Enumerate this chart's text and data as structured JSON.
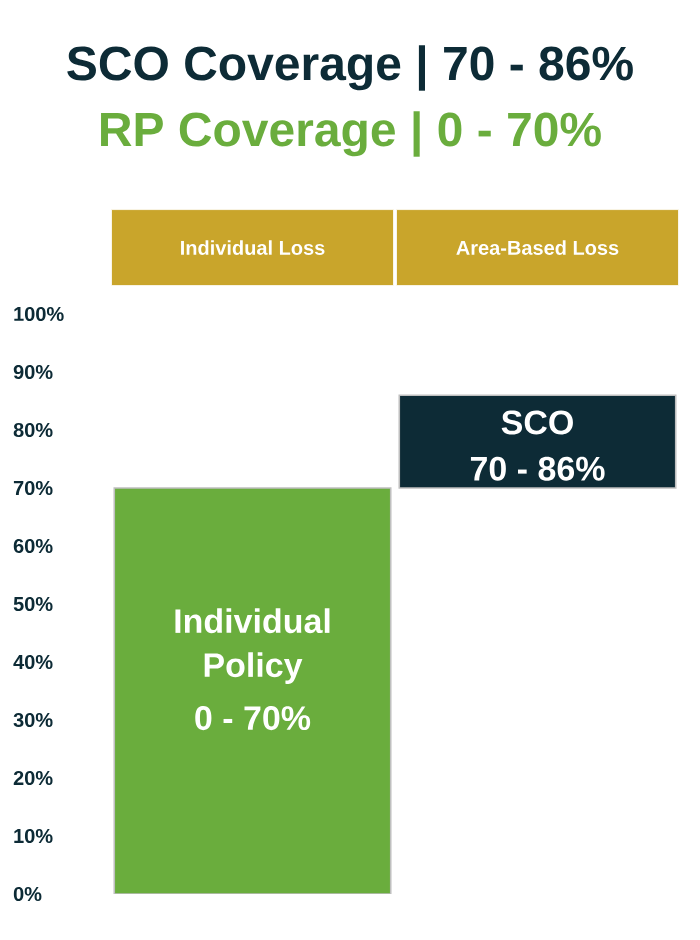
{
  "chart_data": {
    "type": "bar",
    "title": "SCO Coverage   | 70 - 86%",
    "subtitle": "RP Coverage     |   0 - 70%",
    "categories": [
      "Individual Loss",
      "Area-Based Loss"
    ],
    "series": [
      {
        "name": "Individual Policy",
        "color": "#6aad3d",
        "values": [
          70,
          null
        ],
        "base": [
          0,
          null
        ]
      },
      {
        "name": "SCO",
        "color": "#0d2b36",
        "values": [
          null,
          16
        ],
        "base": [
          null,
          70
        ]
      }
    ],
    "annotations": [
      "0 - 70%",
      "70 - 86%"
    ],
    "ylim": [
      0,
      100
    ],
    "yticks": [
      {
        "value": 0,
        "label": "0%"
      },
      {
        "value": 10,
        "label": "10%"
      },
      {
        "value": 20,
        "label": "20%"
      },
      {
        "value": 30,
        "label": "30%"
      },
      {
        "value": 40,
        "label": "40%"
      },
      {
        "value": 50,
        "label": "50%"
      },
      {
        "value": 60,
        "label": "60%"
      },
      {
        "value": 70,
        "label": "70%"
      },
      {
        "value": 80,
        "label": "80%"
      },
      {
        "value": 90,
        "label": "90%"
      },
      {
        "value": 100,
        "label": "100%"
      }
    ],
    "grid": false,
    "legend": false
  }
}
